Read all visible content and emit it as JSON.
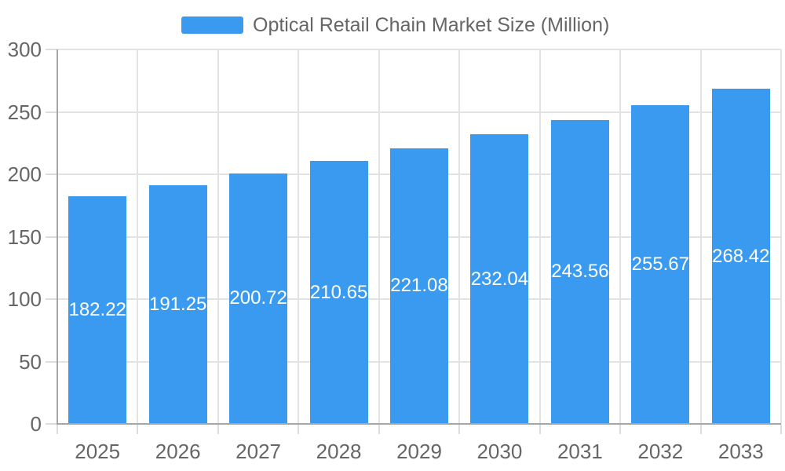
{
  "legend": {
    "label": "Optical Retail Chain Market Size (Million)"
  },
  "chart_data": {
    "type": "bar",
    "title": "Optical Retail Chain Market Size (Million)",
    "legend_entries": [
      "Optical Retail Chain Market Size (Million)"
    ],
    "legend_position": "top-center",
    "categories": [
      "2025",
      "2026",
      "2027",
      "2028",
      "2029",
      "2030",
      "2031",
      "2032",
      "2033"
    ],
    "series": [
      {
        "name": "Optical Retail Chain Market Size (Million)",
        "values": [
          182.22,
          191.25,
          200.72,
          210.65,
          221.08,
          232.04,
          243.56,
          255.67,
          268.42
        ]
      }
    ],
    "value_labels": [
      "182.22",
      "191.25",
      "200.72",
      "210.65",
      "221.08",
      "232.04",
      "243.56",
      "255.67",
      "268.42"
    ],
    "value_label_position": "inside-center",
    "xlabel": "",
    "ylabel": "",
    "ylim": [
      0,
      300
    ],
    "yticks": [
      0,
      50,
      100,
      150,
      200,
      250,
      300
    ],
    "grid": true,
    "colors": {
      "bar": "#3A9AEF",
      "value_label": "#FFFFFF",
      "axis_line": "#A6A6A6",
      "grid_line": "#E3E3E3",
      "tick_line": "#DCDCDC",
      "axis_text": "#666666",
      "legend_text": "#666666",
      "background": "#FFFFFF"
    }
  }
}
